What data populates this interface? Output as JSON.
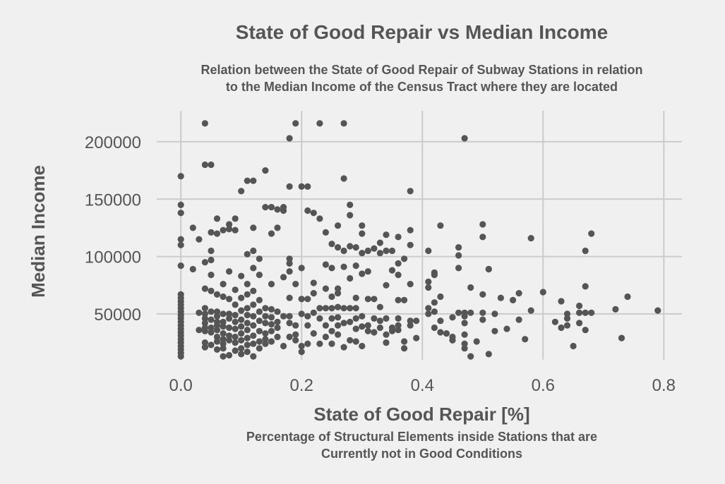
{
  "chart_data": {
    "type": "scatter",
    "title": "State of Good Repair vs Median Income",
    "subtitle_lines": [
      "Relation between the State of Good Repair of Subway Stations in relation",
      "to the Median Income of the Census Tract where they are located"
    ],
    "xlabel": "State of Good Repair [%]",
    "xlabel_sub_lines": [
      "Percentage of Structural Elements inside Stations that are",
      "Currently not in Good Conditions"
    ],
    "ylabel": "Median Income",
    "xlim": [
      -0.04,
      0.83
    ],
    "ylim": [
      10000,
      227000
    ],
    "xticks": [
      0.0,
      0.2,
      0.4,
      0.6,
      0.8
    ],
    "xtick_labels": [
      "0.0",
      "0.2",
      "0.4",
      "0.6",
      "0.8"
    ],
    "yticks": [
      50000,
      100000,
      150000,
      200000
    ],
    "ytick_labels": [
      "50000",
      "100000",
      "150000",
      "200000"
    ],
    "grid": true,
    "colors": {
      "background": "#f0f0f0",
      "grid": "#cbcbcb",
      "point": "#555555",
      "text": "#555555"
    },
    "points": [
      [
        0.0,
        170000
      ],
      [
        0.0,
        145000
      ],
      [
        0.0,
        138000
      ],
      [
        0.0,
        115000
      ],
      [
        0.0,
        110000
      ],
      [
        0.0,
        92000
      ],
      [
        0.0,
        67000
      ],
      [
        0.0,
        64000
      ],
      [
        0.0,
        61000
      ],
      [
        0.0,
        58000
      ],
      [
        0.0,
        55000
      ],
      [
        0.0,
        52000
      ],
      [
        0.0,
        49000
      ],
      [
        0.0,
        46000
      ],
      [
        0.0,
        43000
      ],
      [
        0.0,
        40000
      ],
      [
        0.0,
        37000
      ],
      [
        0.0,
        34000
      ],
      [
        0.0,
        31000
      ],
      [
        0.0,
        28000
      ],
      [
        0.0,
        25000
      ],
      [
        0.0,
        22000
      ],
      [
        0.0,
        19000
      ],
      [
        0.0,
        16000
      ],
      [
        0.0,
        13000
      ],
      [
        0.02,
        125000
      ],
      [
        0.02,
        89000
      ],
      [
        0.03,
        115000
      ],
      [
        0.03,
        51000
      ],
      [
        0.03,
        36000
      ],
      [
        0.04,
        216000
      ],
      [
        0.04,
        180000
      ],
      [
        0.04,
        95000
      ],
      [
        0.04,
        72000
      ],
      [
        0.04,
        55000
      ],
      [
        0.04,
        50000
      ],
      [
        0.04,
        46000
      ],
      [
        0.04,
        42000
      ],
      [
        0.04,
        38000
      ],
      [
        0.04,
        35000
      ],
      [
        0.04,
        25000
      ],
      [
        0.04,
        21000
      ],
      [
        0.05,
        180000
      ],
      [
        0.05,
        121000
      ],
      [
        0.05,
        105000
      ],
      [
        0.05,
        97000
      ],
      [
        0.05,
        84000
      ],
      [
        0.05,
        70000
      ],
      [
        0.05,
        52000
      ],
      [
        0.05,
        45000
      ],
      [
        0.05,
        38000
      ],
      [
        0.05,
        34000
      ],
      [
        0.05,
        23000
      ],
      [
        0.06,
        133000
      ],
      [
        0.06,
        120000
      ],
      [
        0.06,
        67000
      ],
      [
        0.06,
        52000
      ],
      [
        0.06,
        48000
      ],
      [
        0.06,
        43000
      ],
      [
        0.06,
        40000
      ],
      [
        0.06,
        36000
      ],
      [
        0.06,
        30000
      ],
      [
        0.06,
        26000
      ],
      [
        0.06,
        19000
      ],
      [
        0.07,
        123000
      ],
      [
        0.07,
        76000
      ],
      [
        0.07,
        65000
      ],
      [
        0.07,
        50000
      ],
      [
        0.07,
        43000
      ],
      [
        0.07,
        39000
      ],
      [
        0.07,
        33000
      ],
      [
        0.07,
        28000
      ],
      [
        0.07,
        24000
      ],
      [
        0.07,
        20000
      ],
      [
        0.07,
        13000
      ],
      [
        0.08,
        128000
      ],
      [
        0.08,
        124000
      ],
      [
        0.08,
        87000
      ],
      [
        0.08,
        63000
      ],
      [
        0.08,
        50000
      ],
      [
        0.08,
        46000
      ],
      [
        0.08,
        38000
      ],
      [
        0.08,
        31000
      ],
      [
        0.08,
        27000
      ],
      [
        0.08,
        14000
      ],
      [
        0.09,
        133000
      ],
      [
        0.09,
        123000
      ],
      [
        0.09,
        71000
      ],
      [
        0.09,
        58000
      ],
      [
        0.09,
        49000
      ],
      [
        0.09,
        43000
      ],
      [
        0.09,
        37000
      ],
      [
        0.09,
        30000
      ],
      [
        0.09,
        25000
      ],
      [
        0.09,
        18000
      ],
      [
        0.1,
        157000
      ],
      [
        0.1,
        83000
      ],
      [
        0.1,
        64000
      ],
      [
        0.1,
        53000
      ],
      [
        0.1,
        45000
      ],
      [
        0.1,
        39000
      ],
      [
        0.1,
        33000
      ],
      [
        0.1,
        27000
      ],
      [
        0.1,
        20000
      ],
      [
        0.1,
        15000
      ],
      [
        0.11,
        166000
      ],
      [
        0.11,
        102000
      ],
      [
        0.11,
        76000
      ],
      [
        0.11,
        67000
      ],
      [
        0.11,
        55000
      ],
      [
        0.11,
        49000
      ],
      [
        0.11,
        42000
      ],
      [
        0.11,
        36000
      ],
      [
        0.11,
        29000
      ],
      [
        0.11,
        23000
      ],
      [
        0.11,
        17000
      ],
      [
        0.12,
        166000
      ],
      [
        0.12,
        125000
      ],
      [
        0.12,
        105000
      ],
      [
        0.12,
        90000
      ],
      [
        0.12,
        70000
      ],
      [
        0.12,
        58000
      ],
      [
        0.12,
        48000
      ],
      [
        0.12,
        40000
      ],
      [
        0.12,
        31000
      ],
      [
        0.12,
        24000
      ],
      [
        0.12,
        13000
      ],
      [
        0.13,
        98000
      ],
      [
        0.13,
        84000
      ],
      [
        0.13,
        62000
      ],
      [
        0.13,
        52000
      ],
      [
        0.13,
        44000
      ],
      [
        0.13,
        35000
      ],
      [
        0.13,
        26000
      ],
      [
        0.13,
        20000
      ],
      [
        0.14,
        175000
      ],
      [
        0.14,
        143000
      ],
      [
        0.14,
        55000
      ],
      [
        0.14,
        48000
      ],
      [
        0.14,
        42000
      ],
      [
        0.14,
        33000
      ],
      [
        0.14,
        28000
      ],
      [
        0.14,
        24000
      ],
      [
        0.15,
        143000
      ],
      [
        0.15,
        120000
      ],
      [
        0.15,
        76000
      ],
      [
        0.15,
        54000
      ],
      [
        0.15,
        47000
      ],
      [
        0.15,
        41000
      ],
      [
        0.15,
        35000
      ],
      [
        0.15,
        26000
      ],
      [
        0.16,
        141000
      ],
      [
        0.16,
        125000
      ],
      [
        0.16,
        52000
      ],
      [
        0.16,
        43000
      ],
      [
        0.16,
        38000
      ],
      [
        0.16,
        30000
      ],
      [
        0.17,
        143000
      ],
      [
        0.17,
        140000
      ],
      [
        0.17,
        82000
      ],
      [
        0.17,
        48000
      ],
      [
        0.17,
        22000
      ],
      [
        0.18,
        203000
      ],
      [
        0.18,
        161000
      ],
      [
        0.18,
        98000
      ],
      [
        0.18,
        94000
      ],
      [
        0.18,
        87000
      ],
      [
        0.18,
        64000
      ],
      [
        0.18,
        48000
      ],
      [
        0.18,
        42000
      ],
      [
        0.18,
        30000
      ],
      [
        0.19,
        216000
      ],
      [
        0.19,
        76000
      ],
      [
        0.19,
        40000
      ],
      [
        0.19,
        32000
      ],
      [
        0.19,
        27000
      ],
      [
        0.2,
        161000
      ],
      [
        0.2,
        90000
      ],
      [
        0.2,
        63000
      ],
      [
        0.2,
        50000
      ],
      [
        0.2,
        22000
      ],
      [
        0.2,
        17000
      ],
      [
        0.21,
        161000
      ],
      [
        0.21,
        140000
      ],
      [
        0.21,
        63000
      ],
      [
        0.21,
        48000
      ],
      [
        0.21,
        40000
      ],
      [
        0.21,
        24000
      ],
      [
        0.22,
        138000
      ],
      [
        0.22,
        77000
      ],
      [
        0.22,
        68000
      ],
      [
        0.22,
        51000
      ],
      [
        0.22,
        33000
      ],
      [
        0.23,
        216000
      ],
      [
        0.23,
        133000
      ],
      [
        0.23,
        55000
      ],
      [
        0.23,
        46000
      ],
      [
        0.23,
        24000
      ],
      [
        0.24,
        121000
      ],
      [
        0.24,
        93000
      ],
      [
        0.24,
        72000
      ],
      [
        0.24,
        55000
      ],
      [
        0.24,
        40000
      ],
      [
        0.24,
        30000
      ],
      [
        0.25,
        111000
      ],
      [
        0.25,
        90000
      ],
      [
        0.25,
        65000
      ],
      [
        0.25,
        55000
      ],
      [
        0.25,
        46000
      ],
      [
        0.25,
        35000
      ],
      [
        0.25,
        24000
      ],
      [
        0.26,
        127000
      ],
      [
        0.26,
        108000
      ],
      [
        0.26,
        72000
      ],
      [
        0.26,
        68000
      ],
      [
        0.26,
        56000
      ],
      [
        0.26,
        47000
      ],
      [
        0.26,
        40000
      ],
      [
        0.26,
        32000
      ],
      [
        0.27,
        216000
      ],
      [
        0.27,
        168000
      ],
      [
        0.27,
        105000
      ],
      [
        0.27,
        91000
      ],
      [
        0.27,
        55000
      ],
      [
        0.27,
        42000
      ],
      [
        0.27,
        21000
      ],
      [
        0.28,
        145000
      ],
      [
        0.28,
        136000
      ],
      [
        0.28,
        109000
      ],
      [
        0.28,
        81000
      ],
      [
        0.28,
        55000
      ],
      [
        0.28,
        43000
      ],
      [
        0.28,
        27000
      ],
      [
        0.29,
        108000
      ],
      [
        0.29,
        92000
      ],
      [
        0.29,
        64000
      ],
      [
        0.29,
        55000
      ],
      [
        0.29,
        46000
      ],
      [
        0.29,
        37000
      ],
      [
        0.29,
        26000
      ],
      [
        0.3,
        127000
      ],
      [
        0.3,
        120000
      ],
      [
        0.3,
        103000
      ],
      [
        0.3,
        85000
      ],
      [
        0.3,
        48000
      ],
      [
        0.3,
        39000
      ],
      [
        0.3,
        22000
      ],
      [
        0.31,
        105000
      ],
      [
        0.31,
        87000
      ],
      [
        0.31,
        63000
      ],
      [
        0.31,
        40000
      ],
      [
        0.31,
        35000
      ],
      [
        0.32,
        107000
      ],
      [
        0.32,
        63000
      ],
      [
        0.32,
        46000
      ],
      [
        0.32,
        34000
      ],
      [
        0.33,
        112000
      ],
      [
        0.33,
        103000
      ],
      [
        0.33,
        56000
      ],
      [
        0.33,
        44000
      ],
      [
        0.33,
        38000
      ],
      [
        0.34,
        119000
      ],
      [
        0.34,
        105000
      ],
      [
        0.34,
        75000
      ],
      [
        0.34,
        46000
      ],
      [
        0.34,
        32000
      ],
      [
        0.34,
        25000
      ],
      [
        0.35,
        105000
      ],
      [
        0.35,
        88000
      ],
      [
        0.35,
        38000
      ],
      [
        0.35,
        35000
      ],
      [
        0.36,
        117000
      ],
      [
        0.36,
        94000
      ],
      [
        0.36,
        84000
      ],
      [
        0.36,
        62000
      ],
      [
        0.36,
        46000
      ],
      [
        0.36,
        40000
      ],
      [
        0.36,
        36000
      ],
      [
        0.37,
        98000
      ],
      [
        0.37,
        62000
      ],
      [
        0.37,
        26000
      ],
      [
        0.37,
        20000
      ],
      [
        0.38,
        157000
      ],
      [
        0.38,
        123000
      ],
      [
        0.38,
        110000
      ],
      [
        0.38,
        76000
      ],
      [
        0.38,
        44000
      ],
      [
        0.38,
        40000
      ],
      [
        0.39,
        44000
      ],
      [
        0.39,
        29000
      ],
      [
        0.41,
        105000
      ],
      [
        0.41,
        78000
      ],
      [
        0.41,
        73000
      ],
      [
        0.41,
        55000
      ],
      [
        0.41,
        50000
      ],
      [
        0.42,
        86000
      ],
      [
        0.42,
        84000
      ],
      [
        0.42,
        60000
      ],
      [
        0.42,
        52000
      ],
      [
        0.42,
        38000
      ],
      [
        0.43,
        127000
      ],
      [
        0.43,
        65000
      ],
      [
        0.43,
        44000
      ],
      [
        0.43,
        34000
      ],
      [
        0.44,
        33000
      ],
      [
        0.45,
        47000
      ],
      [
        0.45,
        30000
      ],
      [
        0.45,
        27000
      ],
      [
        0.46,
        108000
      ],
      [
        0.46,
        101000
      ],
      [
        0.46,
        90000
      ],
      [
        0.46,
        51000
      ],
      [
        0.47,
        203000
      ],
      [
        0.47,
        51000
      ],
      [
        0.47,
        48000
      ],
      [
        0.47,
        42000
      ],
      [
        0.47,
        32000
      ],
      [
        0.47,
        24000
      ],
      [
        0.47,
        20000
      ],
      [
        0.48,
        73000
      ],
      [
        0.48,
        51000
      ],
      [
        0.48,
        13000
      ],
      [
        0.49,
        26000
      ],
      [
        0.5,
        128000
      ],
      [
        0.5,
        117000
      ],
      [
        0.5,
        67000
      ],
      [
        0.5,
        51000
      ],
      [
        0.5,
        45000
      ],
      [
        0.51,
        89000
      ],
      [
        0.51,
        89000
      ],
      [
        0.51,
        15000
      ],
      [
        0.52,
        50000
      ],
      [
        0.52,
        35000
      ],
      [
        0.53,
        64000
      ],
      [
        0.54,
        37000
      ],
      [
        0.55,
        62000
      ],
      [
        0.56,
        68000
      ],
      [
        0.56,
        45000
      ],
      [
        0.57,
        28000
      ],
      [
        0.58,
        116000
      ],
      [
        0.58,
        53000
      ],
      [
        0.6,
        69000
      ],
      [
        0.62,
        43000
      ],
      [
        0.63,
        61000
      ],
      [
        0.63,
        38000
      ],
      [
        0.64,
        50000
      ],
      [
        0.64,
        46000
      ],
      [
        0.64,
        40000
      ],
      [
        0.65,
        22000
      ],
      [
        0.66,
        57000
      ],
      [
        0.66,
        51000
      ],
      [
        0.66,
        42000
      ],
      [
        0.67,
        105000
      ],
      [
        0.67,
        74000
      ],
      [
        0.67,
        51000
      ],
      [
        0.67,
        36000
      ],
      [
        0.68,
        120000
      ],
      [
        0.68,
        51000
      ],
      [
        0.72,
        54000
      ],
      [
        0.73,
        29000
      ],
      [
        0.74,
        65000
      ],
      [
        0.79,
        53000
      ]
    ]
  }
}
